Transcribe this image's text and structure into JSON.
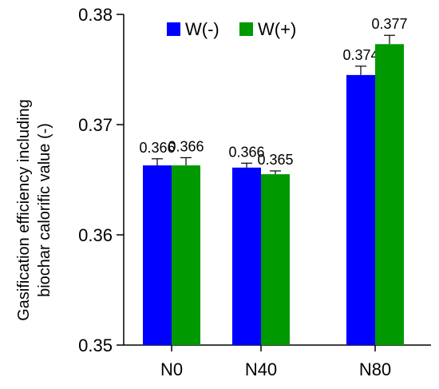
{
  "chart_data": {
    "type": "bar",
    "ylabel_line1": "Gasification efficiency including",
    "ylabel_line2": "biochar calorific value  (-)",
    "ylim": [
      0.35,
      0.38
    ],
    "yticks": [
      "0.35",
      "0.36",
      "0.37",
      "0.38"
    ],
    "ytick_values": [
      0.35,
      0.36,
      0.37,
      0.38
    ],
    "categories": [
      "N0",
      "N40",
      "N80"
    ],
    "series": [
      {
        "name": "W(-)",
        "color": "#0000ff",
        "values": [
          0.3663,
          0.3661,
          0.3745
        ],
        "errors": [
          0.0006,
          0.0004,
          0.0008
        ],
        "labels": [
          "0.366",
          "0.366",
          "0.374"
        ]
      },
      {
        "name": "W(+)",
        "color": "#009900",
        "values": [
          0.3663,
          0.3655,
          0.3773
        ],
        "errors": [
          0.0007,
          0.0003,
          0.0008
        ],
        "labels": [
          "0.366",
          "0.365",
          "0.377"
        ]
      }
    ],
    "legend_position": "top"
  }
}
